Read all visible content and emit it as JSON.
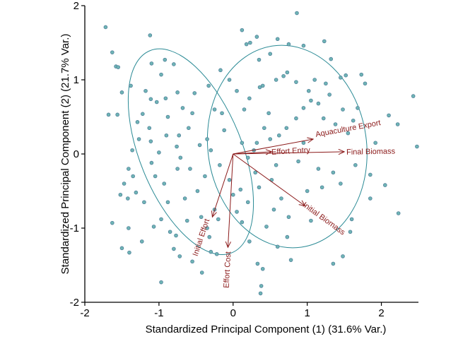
{
  "chart_data": {
    "type": "scatter",
    "title": "",
    "xlabel": "Standardized Principal Component (1) (31.6% Var.)",
    "ylabel": "Standardized Principal Component (2) (21.7% Var.)",
    "xlim": [
      -2,
      2.5
    ],
    "ylim": [
      -2,
      2
    ],
    "xticks": [
      -2,
      -1,
      0,
      1,
      2
    ],
    "yticks": [
      -2,
      -1,
      0,
      1,
      2
    ],
    "grid": false,
    "legend": "none",
    "colors": {
      "point_fill": "#6fb5b5",
      "point_stroke": "#4f7f9a",
      "ellipse": "#2a8a95",
      "arrow": "#8b1a1a",
      "axis": "#000000"
    },
    "ellipses": [
      {
        "cx": -0.57,
        "cy": 0.03,
        "rx": 0.69,
        "ry": 1.47,
        "angle_deg": 22
      },
      {
        "cx": 0.73,
        "cy": 0.1,
        "rx": 1.07,
        "ry": 1.37,
        "angle_deg": 8
      }
    ],
    "loadings": [
      {
        "label": "Aquaculture Export",
        "x": 1.08,
        "y": 0.2
      },
      {
        "label": "Final Biomass",
        "x": 1.5,
        "y": 0.03
      },
      {
        "label": "Effort Entry",
        "x": 0.52,
        "y": 0.03
      },
      {
        "label": "Initial Biomass",
        "x": 0.97,
        "y": -0.7
      },
      {
        "label": "Initial Effort",
        "x": -0.28,
        "y": -0.85
      },
      {
        "label": "Effort Cost",
        "x": -0.07,
        "y": -1.26
      }
    ],
    "points": [
      [
        -1.72,
        1.71
      ],
      [
        -1.63,
        1.37
      ],
      [
        -1.58,
        1.18
      ],
      [
        -1.55,
        1.17
      ],
      [
        -1.5,
        0.83
      ],
      [
        -1.68,
        0.53
      ],
      [
        -1.56,
        0.53
      ],
      [
        -1.52,
        -0.55
      ],
      [
        -1.63,
        -0.93
      ],
      [
        -1.5,
        -1.27
      ],
      [
        -1.4,
        -1.33
      ],
      [
        -1.41,
        -1.0
      ],
      [
        -1.12,
        1.6
      ],
      [
        -1.1,
        1.22
      ],
      [
        -1.11,
        0.74
      ],
      [
        -1.03,
        0.7
      ],
      [
        -1.18,
        0.85
      ],
      [
        -1.22,
        0.54
      ],
      [
        -1.29,
        0.43
      ],
      [
        -1.13,
        0.35
      ],
      [
        -1.11,
        0.17
      ],
      [
        -0.92,
        1.27
      ],
      [
        -0.97,
        1.07
      ],
      [
        -0.91,
        0.75
      ],
      [
        -0.88,
        0.5
      ],
      [
        -0.8,
        1.21
      ],
      [
        -0.75,
        0.83
      ],
      [
        -0.73,
        0.25
      ],
      [
        -0.76,
        0.1
      ],
      [
        -0.71,
        -0.05
      ],
      [
        -1.38,
        0.92
      ],
      [
        -1.27,
        0.2
      ],
      [
        -1.36,
        0.05
      ],
      [
        -1.41,
        -0.2
      ],
      [
        -1.35,
        -0.3
      ],
      [
        -1.47,
        -0.4
      ],
      [
        -1.42,
        -0.6
      ],
      [
        -1.31,
        -0.52
      ],
      [
        -1.2,
        -0.65
      ],
      [
        -1.1,
        -0.12
      ],
      [
        -1.0,
        0.02
      ],
      [
        -1.05,
        -0.3
      ],
      [
        -0.93,
        -0.4
      ],
      [
        -0.88,
        -0.65
      ],
      [
        -0.97,
        -0.88
      ],
      [
        -0.85,
        -1.05
      ],
      [
        -0.77,
        -1.1
      ],
      [
        -0.65,
        -0.6
      ],
      [
        -0.58,
        -0.2
      ],
      [
        -0.6,
        0.35
      ],
      [
        -0.55,
        0.55
      ],
      [
        -0.52,
        0.82
      ],
      [
        -0.45,
        0.12
      ],
      [
        -0.38,
        -0.3
      ],
      [
        -0.43,
        -0.85
      ],
      [
        -0.35,
        -1.0
      ],
      [
        -0.25,
        -0.75
      ],
      [
        -0.32,
        -1.12
      ],
      [
        -0.22,
        -1.35
      ],
      [
        -0.42,
        -1.6
      ],
      [
        -0.55,
        -1.45
      ],
      [
        -0.72,
        -1.38
      ],
      [
        -0.8,
        -1.28
      ],
      [
        -0.97,
        -1.73
      ],
      [
        -1.23,
        -1.18
      ],
      [
        -1.07,
        -0.98
      ],
      [
        -0.62,
        -0.9
      ],
      [
        -0.48,
        -0.5
      ],
      [
        -0.12,
        0.32
      ],
      [
        -0.15,
        0.55
      ],
      [
        -0.25,
        0.6
      ],
      [
        -0.33,
        0.92
      ],
      [
        -0.17,
        1.13
      ],
      [
        -0.3,
        -1.32
      ],
      [
        -0.2,
        -0.88
      ],
      [
        -0.3,
        0.05
      ],
      [
        -0.35,
        0.2
      ],
      [
        -0.75,
        -0.2
      ],
      [
        -0.68,
        0.62
      ],
      [
        -0.9,
        0.25
      ],
      [
        0.12,
        1.67
      ],
      [
        0.18,
        1.48
      ],
      [
        0.23,
        1.5
      ],
      [
        0.32,
        1.58
      ],
      [
        0.35,
        1.27
      ],
      [
        0.5,
        1.35
      ],
      [
        0.6,
        1.55
      ],
      [
        0.75,
        1.48
      ],
      [
        0.86,
        1.9
      ],
      [
        0.95,
        1.46
      ],
      [
        1.23,
        1.52
      ],
      [
        1.32,
        1.28
      ],
      [
        1.45,
        1.03
      ],
      [
        1.52,
        1.06
      ],
      [
        1.73,
        1.07
      ],
      [
        1.78,
        0.95
      ],
      [
        2.1,
        0.52
      ],
      [
        2.22,
        0.4
      ],
      [
        2.43,
        0.78
      ],
      [
        2.48,
        0.1
      ],
      [
        2.23,
        -0.8
      ],
      [
        2.05,
        -0.42
      ],
      [
        1.85,
        -0.6
      ],
      [
        1.6,
        -0.88
      ],
      [
        1.58,
        -1.05
      ],
      [
        1.48,
        -1.38
      ],
      [
        1.35,
        -1.48
      ],
      [
        1.05,
        -0.9
      ],
      [
        1.0,
        -0.5
      ],
      [
        0.73,
        -1.12
      ],
      [
        0.78,
        -1.43
      ],
      [
        0.6,
        -1.25
      ],
      [
        0.45,
        -0.98
      ],
      [
        0.33,
        -1.48
      ],
      [
        0.22,
        -1.18
      ],
      [
        0.12,
        -0.92
      ],
      [
        0.0,
        -0.55
      ],
      [
        0.05,
        -0.78
      ],
      [
        0.38,
        -1.78
      ],
      [
        0.37,
        -1.88
      ],
      [
        0.4,
        -1.55
      ],
      [
        0.65,
        -0.6
      ],
      [
        0.52,
        -0.35
      ],
      [
        0.35,
        -0.45
      ],
      [
        0.3,
        -0.25
      ],
      [
        0.2,
        -0.05
      ],
      [
        0.12,
        0.15
      ],
      [
        0.28,
        0.05
      ],
      [
        0.42,
        0.35
      ],
      [
        0.48,
        0.55
      ],
      [
        0.36,
        0.9
      ],
      [
        0.4,
        0.92
      ],
      [
        0.58,
        1.0
      ],
      [
        0.68,
        1.05
      ],
      [
        0.73,
        1.1
      ],
      [
        0.85,
        0.97
      ],
      [
        0.95,
        0.62
      ],
      [
        1.05,
        0.72
      ],
      [
        1.15,
        0.68
      ],
      [
        1.22,
        0.48
      ],
      [
        1.25,
        0.95
      ],
      [
        1.1,
        1.0
      ],
      [
        1.3,
        0.8
      ],
      [
        1.38,
        0.4
      ],
      [
        1.55,
        0.28
      ],
      [
        1.62,
        0.45
      ],
      [
        1.68,
        0.62
      ],
      [
        1.48,
        0.6
      ],
      [
        0.72,
        0.35
      ],
      [
        0.62,
        0.25
      ],
      [
        0.85,
        0.48
      ],
      [
        0.95,
        0.15
      ],
      [
        0.88,
        -0.1
      ],
      [
        1.15,
        -0.2
      ],
      [
        1.35,
        -0.25
      ],
      [
        1.45,
        -0.4
      ],
      [
        1.65,
        -0.15
      ],
      [
        1.85,
        -0.28
      ],
      [
        1.92,
        0.15
      ],
      [
        1.2,
        -0.45
      ],
      [
        0.75,
        -0.85
      ],
      [
        0.55,
        -0.75
      ],
      [
        0.2,
        -0.65
      ],
      [
        0.1,
        -0.48
      ],
      [
        0.15,
        0.6
      ],
      [
        0.05,
        0.85
      ],
      [
        -0.05,
        1.0
      ],
      [
        0.22,
        0.75
      ],
      [
        0.5,
        0.2
      ],
      [
        0.58,
        -0.15
      ],
      [
        -0.05,
        -0.35
      ],
      [
        -0.18,
        -0.15
      ],
      [
        0.32,
        0.15
      ],
      [
        1.02,
        0.85
      ]
    ]
  }
}
